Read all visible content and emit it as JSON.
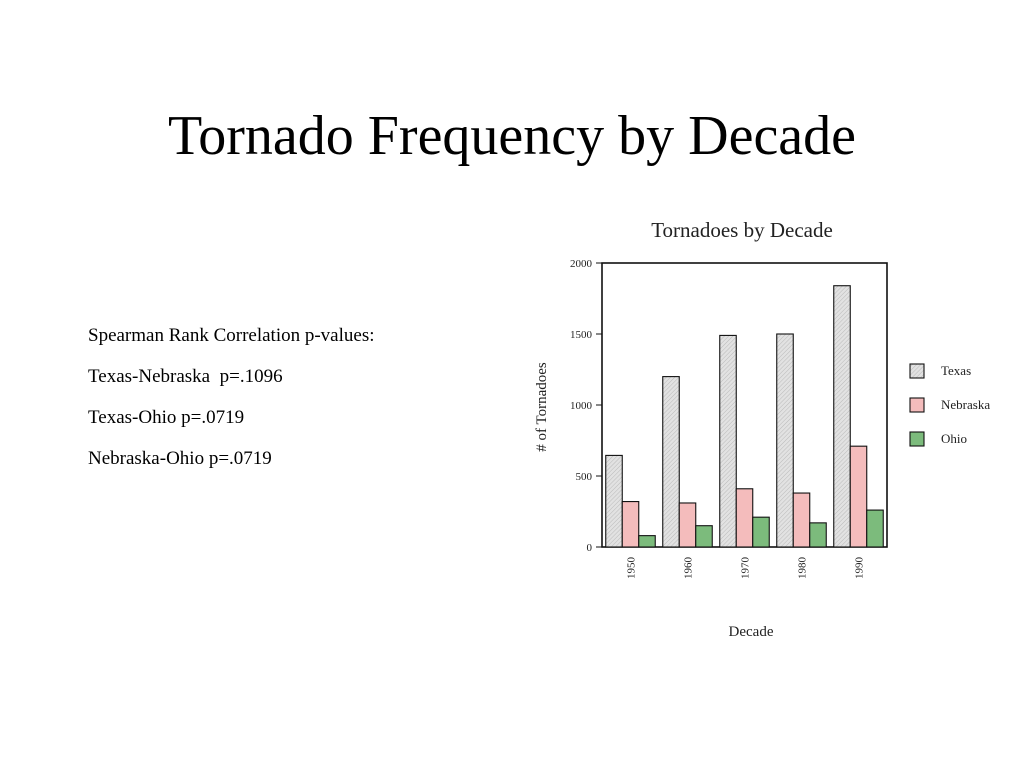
{
  "slide": {
    "title": "Tornado Frequency by Decade"
  },
  "stats": {
    "heading": "Spearman Rank Correlation p-values:",
    "lines": [
      "Texas-Nebraska  p=.1096",
      "Texas-Ohio p=.0719",
      "Nebraska-Ohio p=.0719"
    ]
  },
  "chart_data": {
    "type": "bar",
    "title": "Tornadoes by Decade",
    "xlabel": "Decade",
    "ylabel": "# of Tornadoes",
    "categories": [
      "1950",
      "1960",
      "1970",
      "1980",
      "1990"
    ],
    "series": [
      {
        "name": "Texas",
        "values": [
          645,
          1200,
          1490,
          1500,
          1840
        ],
        "color": "#dcdcdc"
      },
      {
        "name": "Nebraska",
        "values": [
          320,
          310,
          410,
          380,
          710
        ],
        "color": "#f4bcbc"
      },
      {
        "name": "Ohio",
        "values": [
          80,
          150,
          210,
          170,
          260
        ],
        "color": "#7cbb7c"
      }
    ],
    "ylim": [
      0,
      2000
    ],
    "yticks": [
      "0",
      "500",
      "1000",
      "1500",
      "2000"
    ],
    "grid": false,
    "legend_position": "right"
  }
}
